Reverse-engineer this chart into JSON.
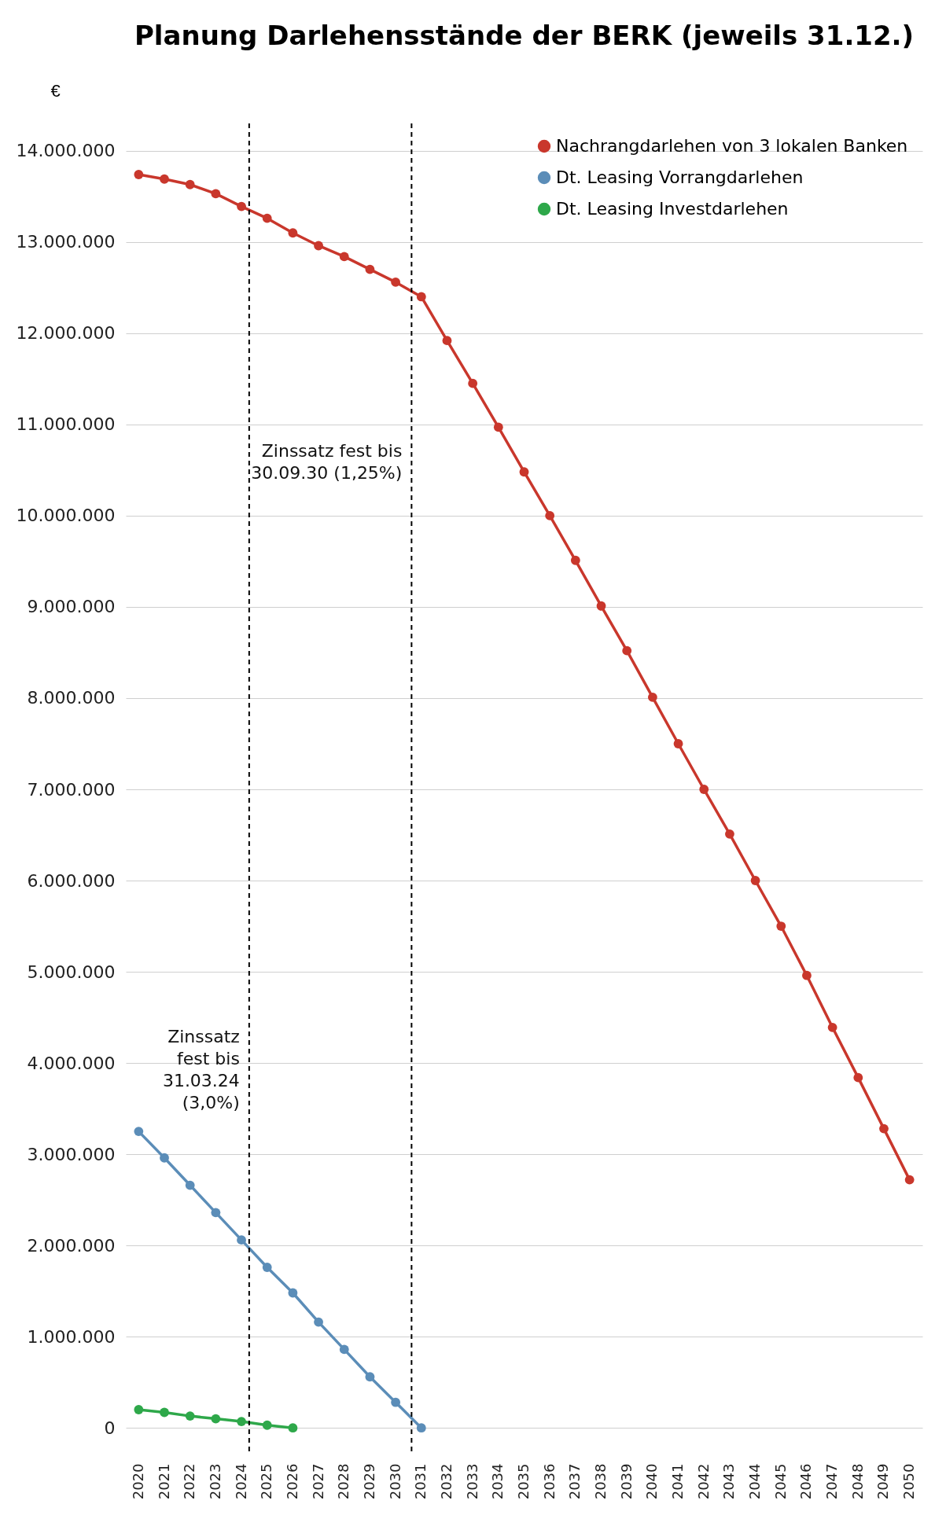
{
  "chart_data": {
    "type": "line",
    "title": "Planung Darlehensstände der BERK (jeweils 31.12.)",
    "ylabel": "€",
    "x": [
      2020,
      2021,
      2022,
      2023,
      2024,
      2025,
      2026,
      2027,
      2028,
      2029,
      2030,
      2031,
      2032,
      2033,
      2034,
      2035,
      2036,
      2037,
      2038,
      2039,
      2040,
      2041,
      2042,
      2043,
      2044,
      2045,
      2046,
      2047,
      2048,
      2049,
      2050
    ],
    "xlim": [
      2019.5,
      2050.5
    ],
    "xticks": [
      2020,
      2021,
      2022,
      2023,
      2024,
      2025,
      2026,
      2027,
      2028,
      2029,
      2030,
      2031,
      2032,
      2033,
      2034,
      2035,
      2036,
      2037,
      2038,
      2039,
      2040,
      2041,
      2042,
      2043,
      2044,
      2045,
      2046,
      2047,
      2048,
      2049,
      2050
    ],
    "ylim": [
      -300000,
      14300000
    ],
    "yticks": [
      0,
      {
        "value": 1000000,
        "label": "1.000.000"
      },
      {
        "value": 2000000,
        "label": "2.000.000"
      },
      {
        "value": 3000000,
        "label": "3.000.000"
      },
      {
        "value": 4000000,
        "label": "4.000.000"
      },
      {
        "value": 5000000,
        "label": "5.000.000"
      },
      {
        "value": 6000000,
        "label": "6.000.000"
      },
      {
        "value": 7000000,
        "label": "7.000.000"
      },
      {
        "value": 8000000,
        "label": "8.000.000"
      },
      {
        "value": 9000000,
        "label": "9.000.000"
      },
      {
        "value": 10000000,
        "label": "10.000.000"
      },
      {
        "value": 11000000,
        "label": "11.000.000"
      },
      {
        "value": 12000000,
        "label": "12.000.000"
      },
      {
        "value": 13000000,
        "label": "13.000.000"
      },
      {
        "value": 14000000,
        "label": "14.000.000"
      }
    ],
    "series": [
      {
        "name": "Nachrangdarlehen von 3 lokalen Banken",
        "color": "#c9372c",
        "values": [
          13740000,
          13690000,
          13630000,
          13530000,
          13390000,
          13260000,
          13100000,
          12960000,
          12840000,
          12700000,
          12560000,
          12400000,
          11920000,
          11450000,
          10970000,
          10480000,
          10000000,
          9510000,
          9010000,
          8520000,
          8010000,
          7500000,
          7000000,
          6510000,
          6000000,
          5500000,
          4960000,
          4390000,
          3840000,
          3280000,
          2720000
        ]
      },
      {
        "name": "Dt. Leasing Vorrangdarlehen",
        "color": "#5b8db8",
        "x": [
          2020,
          2021,
          2022,
          2023,
          2024,
          2025,
          2026,
          2027,
          2028,
          2029,
          2030,
          2031
        ],
        "values": [
          3250000,
          2960000,
          2660000,
          2360000,
          2060000,
          1760000,
          1480000,
          1160000,
          860000,
          560000,
          280000,
          0
        ]
      },
      {
        "name": "Dt. Leasing Investdarlehen",
        "color": "#2ea84a",
        "x": [
          2020,
          2021,
          2022,
          2023,
          2024,
          2025,
          2026
        ],
        "values": [
          200000,
          170000,
          130000,
          100000,
          70000,
          30000,
          0
        ]
      }
    ],
    "ref_lines": [
      {
        "axis": "x",
        "value": 2030.62,
        "label": "Zinssatz fest bis 30.09.30 (1,25%)",
        "line_style": "dashed",
        "color": "#000000"
      },
      {
        "axis": "x",
        "value": 2024.3,
        "label": "Zinssatz fest bis 31.03.24 (3,0%)",
        "line_style": "dashed",
        "color": "#000000"
      }
    ],
    "grid": "y",
    "legend": "top right",
    "marker": "circle",
    "line_style": "solid"
  }
}
